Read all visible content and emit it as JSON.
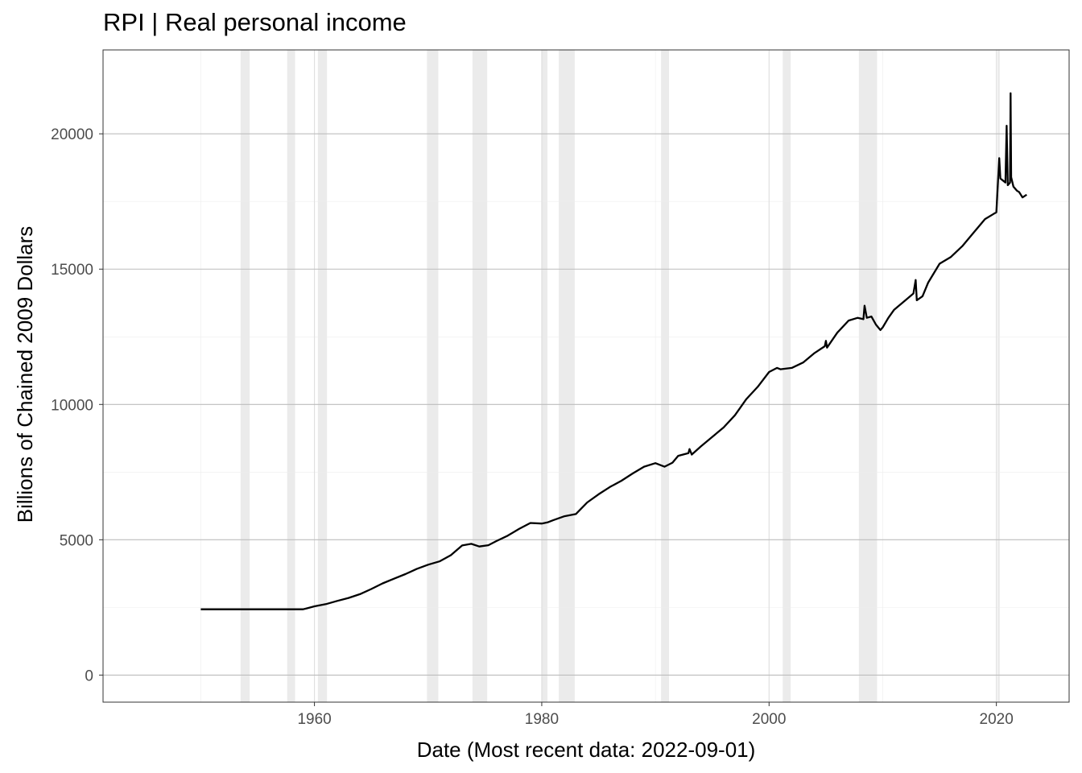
{
  "chart_data": {
    "type": "line",
    "title": "RPI | Real personal income",
    "xlabel": "Date (Most recent data: 2022-09-01)",
    "ylabel": "Billions of Chained 2009 Dollars",
    "xlim": [
      1941.4,
      2026.4
    ],
    "ylim": [
      -1000,
      23100
    ],
    "x_ticks": [
      1960,
      1980,
      2000,
      2020
    ],
    "y_ticks": [
      0,
      5000,
      10000,
      15000,
      20000
    ],
    "grid": true,
    "recession_shading": [
      [
        1953.5,
        1954.3
      ],
      [
        1957.6,
        1958.3
      ],
      [
        1960.3,
        1961.1
      ],
      [
        1969.9,
        1970.9
      ],
      [
        1973.9,
        1975.2
      ],
      [
        1980.0,
        1980.5
      ],
      [
        1981.5,
        1982.9
      ],
      [
        1990.5,
        1991.2
      ],
      [
        2001.2,
        2001.9
      ],
      [
        2007.9,
        2009.5
      ],
      [
        2020.1,
        2020.3
      ]
    ],
    "series": [
      {
        "color": "#000000",
        "x": [
          1950.0,
          1953.0,
          1956.0,
          1958.0,
          1959.0,
          1960.0,
          1961.0,
          1962.0,
          1963.0,
          1964.0,
          1965.0,
          1966.0,
          1967.0,
          1968.0,
          1969.0,
          1970.0,
          1971.0,
          1972.0,
          1973.0,
          1973.8,
          1974.5,
          1975.3,
          1976.0,
          1977.0,
          1978.0,
          1979.0,
          1980.0,
          1980.5,
          1981.0,
          1982.0,
          1983.0,
          1984.0,
          1985.0,
          1986.0,
          1987.0,
          1988.0,
          1989.0,
          1990.0,
          1990.8,
          1991.5,
          1992.0,
          1992.9,
          1993.0,
          1993.2,
          1994.0,
          1995.0,
          1996.0,
          1997.0,
          1998.0,
          1999.0,
          2000.0,
          2000.7,
          2001.0,
          2002.0,
          2003.0,
          2004.0,
          2004.9,
          2005.0,
          2005.1,
          2006.0,
          2007.0,
          2007.8,
          2008.3,
          2008.4,
          2008.6,
          2009.0,
          2009.4,
          2009.8,
          2010.0,
          2010.5,
          2011.0,
          2012.0,
          2012.7,
          2012.9,
          2013.0,
          2013.5,
          2014.0,
          2015.0,
          2016.0,
          2017.0,
          2018.0,
          2019.0,
          2019.8,
          2020.0,
          2020.25,
          2020.35,
          2020.5,
          2020.8,
          2020.9,
          2021.0,
          2021.2,
          2021.25,
          2021.3,
          2021.5,
          2021.8,
          2022.0,
          2022.3,
          2022.67
        ],
        "y": [
          2430,
          2430,
          2430,
          2430,
          2430,
          2540,
          2620,
          2740,
          2850,
          2990,
          3180,
          3390,
          3560,
          3730,
          3920,
          4080,
          4200,
          4430,
          4790,
          4850,
          4750,
          4800,
          4950,
          5150,
          5400,
          5620,
          5600,
          5640,
          5720,
          5870,
          5950,
          6380,
          6680,
          6950,
          7180,
          7450,
          7700,
          7830,
          7700,
          7850,
          8100,
          8200,
          8350,
          8150,
          8450,
          8800,
          9150,
          9600,
          10200,
          10650,
          11200,
          11350,
          11300,
          11350,
          11550,
          11900,
          12150,
          12350,
          12100,
          12650,
          13100,
          13200,
          13150,
          13650,
          13200,
          13250,
          12950,
          12750,
          12850,
          13200,
          13500,
          13850,
          14100,
          14600,
          13850,
          14000,
          14500,
          15200,
          15450,
          15850,
          16350,
          16850,
          17050,
          17100,
          19100,
          18350,
          18300,
          18200,
          20300,
          18100,
          18200,
          21500,
          18400,
          18050,
          17900,
          17850,
          17650,
          17750
        ]
      }
    ]
  }
}
